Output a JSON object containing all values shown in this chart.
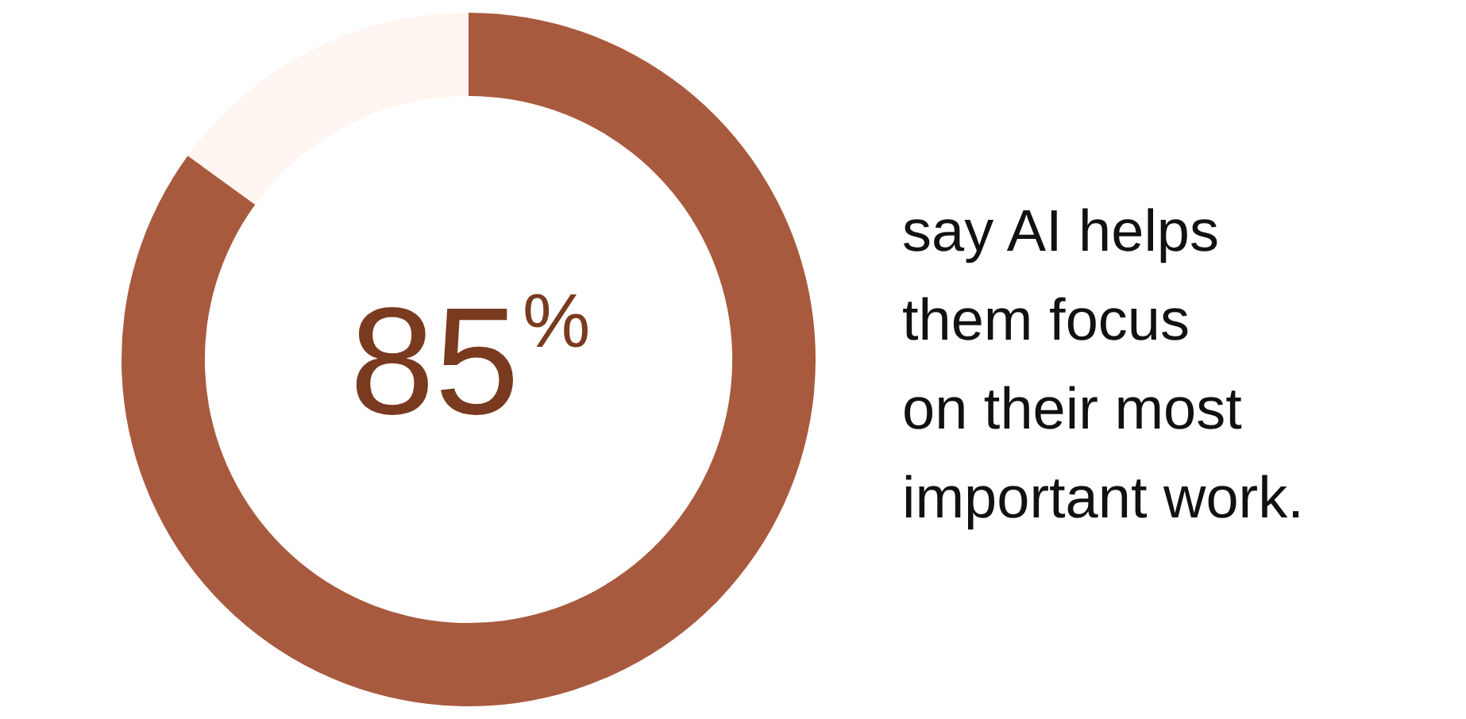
{
  "chart_data": {
    "type": "donut",
    "categories": [
      null,
      null
    ],
    "values": [
      85,
      15
    ],
    "colors": [
      "#a85a3f",
      "#fff6f1"
    ],
    "value_labels": [
      "85%",
      null
    ],
    "legend": false,
    "annotations": [
      "say AI helps\nthem focus\non their most\nimportant work."
    ]
  }
}
